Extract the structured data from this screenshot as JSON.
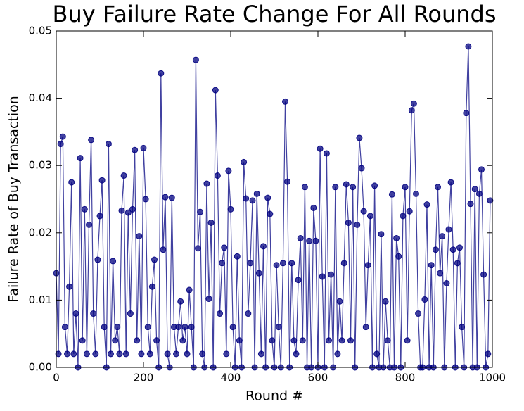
{
  "chart_data": {
    "type": "line",
    "title": "Buy Failure Rate Change For All Rounds",
    "x_label": "Round #",
    "y_label": "Failure Rate of Buy Transaction",
    "color": "#000080",
    "markers": true,
    "xlim": [
      0,
      1000
    ],
    "xticks": [
      0,
      200,
      400,
      600,
      800,
      1000
    ],
    "ylim": [
      0,
      0.05
    ],
    "yticks": [
      {
        "value": 0,
        "label": "0.00"
      },
      0.01,
      0.02,
      0.03,
      0.04,
      0.05
    ],
    "x": [
      0,
      5,
      10,
      15,
      20,
      25,
      30,
      35,
      40,
      45,
      50,
      55,
      60,
      65,
      70,
      75,
      80,
      85,
      90,
      95,
      100,
      105,
      110,
      115,
      120,
      125,
      130,
      135,
      140,
      145,
      150,
      155,
      160,
      165,
      170,
      175,
      180,
      185,
      190,
      195,
      200,
      205,
      210,
      215,
      220,
      225,
      230,
      235,
      240,
      245,
      250,
      255,
      260,
      265,
      270,
      275,
      280,
      285,
      290,
      295,
      300,
      305,
      310,
      315,
      320,
      325,
      330,
      335,
      340,
      345,
      350,
      355,
      360,
      365,
      370,
      375,
      380,
      385,
      390,
      395,
      400,
      405,
      410,
      415,
      420,
      425,
      430,
      435,
      440,
      445,
      450,
      455,
      460,
      465,
      470,
      475,
      480,
      485,
      490,
      495,
      500,
      505,
      510,
      515,
      520,
      525,
      530,
      535,
      540,
      545,
      550,
      555,
      560,
      565,
      570,
      575,
      580,
      585,
      590,
      595,
      600,
      605,
      610,
      615,
      620,
      625,
      630,
      635,
      640,
      645,
      650,
      655,
      660,
      665,
      670,
      675,
      680,
      685,
      690,
      695,
      700,
      705,
      710,
      715,
      720,
      725,
      730,
      735,
      740,
      745,
      750,
      755,
      760,
      765,
      770,
      775,
      780,
      785,
      790,
      795,
      800,
      805,
      810,
      815,
      820,
      825,
      830,
      835,
      840,
      845,
      850,
      855,
      860,
      865,
      870,
      875,
      880,
      885,
      890,
      895,
      900,
      905,
      910,
      915,
      920,
      925,
      930,
      935,
      940,
      945,
      950,
      955,
      960,
      965,
      970,
      975,
      980,
      985,
      990,
      995
    ],
    "values": [
      0.014,
      0.002,
      0.0332,
      0.0343,
      0.006,
      0.002,
      0.012,
      0.0275,
      0.002,
      0.008,
      0.0,
      0.0311,
      0.004,
      0.0235,
      0.002,
      0.0212,
      0.0338,
      0.008,
      0.002,
      0.016,
      0.0225,
      0.0278,
      0.006,
      0.0,
      0.0332,
      0.002,
      0.0158,
      0.004,
      0.006,
      0.002,
      0.0233,
      0.0285,
      0.002,
      0.023,
      0.008,
      0.0235,
      0.0323,
      0.004,
      0.0195,
      0.002,
      0.0326,
      0.025,
      0.006,
      0.002,
      0.012,
      0.016,
      0.004,
      0.0,
      0.0437,
      0.0175,
      0.0253,
      0.002,
      0.0,
      0.0252,
      0.006,
      0.002,
      0.006,
      0.0098,
      0.004,
      0.006,
      0.002,
      0.0115,
      0.006,
      0.0,
      0.0457,
      0.0177,
      0.0231,
      0.002,
      0.0,
      0.0273,
      0.0102,
      0.0215,
      0.0,
      0.0412,
      0.0285,
      0.008,
      0.0155,
      0.0178,
      0.002,
      0.0292,
      0.0235,
      0.006,
      0.0,
      0.0165,
      0.004,
      0.0,
      0.0305,
      0.0251,
      0.008,
      0.0155,
      0.0248,
      0.0,
      0.0258,
      0.014,
      0.002,
      0.018,
      0.0,
      0.0252,
      0.0228,
      0.004,
      0.0,
      0.0152,
      0.006,
      0.0,
      0.0155,
      0.0395,
      0.0276,
      0.0,
      0.0155,
      0.004,
      0.002,
      0.013,
      0.0192,
      0.004,
      0.0268,
      0.0,
      0.0188,
      0.0,
      0.0237,
      0.0188,
      0.0,
      0.0325,
      0.0135,
      0.0,
      0.0318,
      0.004,
      0.0138,
      0.0,
      0.0268,
      0.002,
      0.0098,
      0.004,
      0.0155,
      0.0272,
      0.0215,
      0.004,
      0.0268,
      0.0,
      0.0212,
      0.0341,
      0.0296,
      0.0232,
      0.006,
      0.0152,
      0.0225,
      0.0,
      0.027,
      0.002,
      0.0,
      0.0198,
      0.0,
      0.0098,
      0.004,
      0.0,
      0.0257,
      0.0,
      0.0192,
      0.0165,
      0.0,
      0.0225,
      0.0268,
      0.004,
      0.0232,
      0.0382,
      0.0392,
      0.0258,
      0.008,
      0.0,
      0.0,
      0.0101,
      0.0242,
      0.0,
      0.0152,
      0.0,
      0.0175,
      0.0268,
      0.014,
      0.0195,
      0.0,
      0.0125,
      0.0205,
      0.0275,
      0.0175,
      0.0,
      0.0155,
      0.0178,
      0.006,
      0.0,
      0.0378,
      0.0477,
      0.0243,
      0.0,
      0.0265,
      0.0,
      0.0258,
      0.0294,
      0.0138,
      0.0,
      0.002,
      0.0248
    ]
  }
}
